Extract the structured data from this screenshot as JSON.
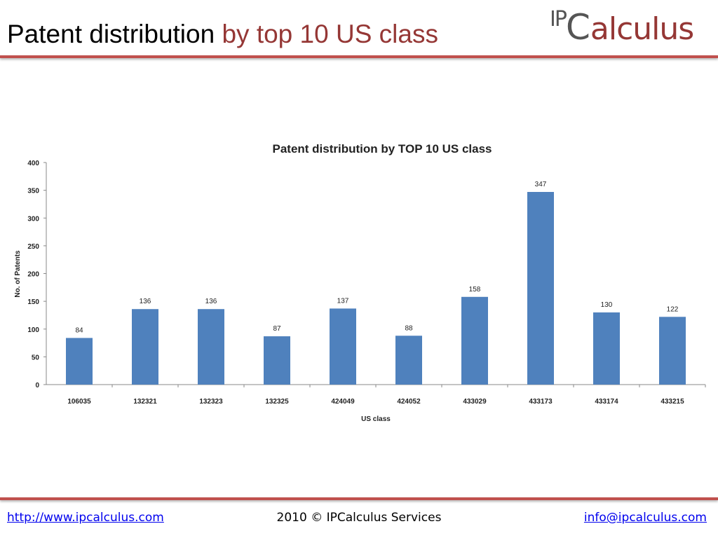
{
  "header": {
    "title_main": "Patent distribution",
    "title_accent": "by top 10 US class",
    "logo": "IPCalculus"
  },
  "footer": {
    "url": "http://www.ipcalculus.com",
    "copyright": "2010 © IPCalculus Services",
    "email": "info@ipcalculus.com"
  },
  "colors": {
    "bar": "#4f81bd",
    "accent": "#c0504d"
  },
  "chart_data": {
    "type": "bar",
    "title": "Patent distribution  by TOP 10 US class",
    "xlabel": "US class",
    "ylabel": "No. of Patents",
    "ylim": [
      0,
      400
    ],
    "yticks": [
      0,
      50,
      100,
      150,
      200,
      250,
      300,
      350,
      400
    ],
    "categories": [
      "106035",
      "132321",
      "132323",
      "132325",
      "424049",
      "424052",
      "433029",
      "433173",
      "433174",
      "433215"
    ],
    "values": [
      84,
      136,
      136,
      87,
      137,
      88,
      158,
      347,
      130,
      122
    ],
    "grid": false,
    "legend": "none"
  }
}
